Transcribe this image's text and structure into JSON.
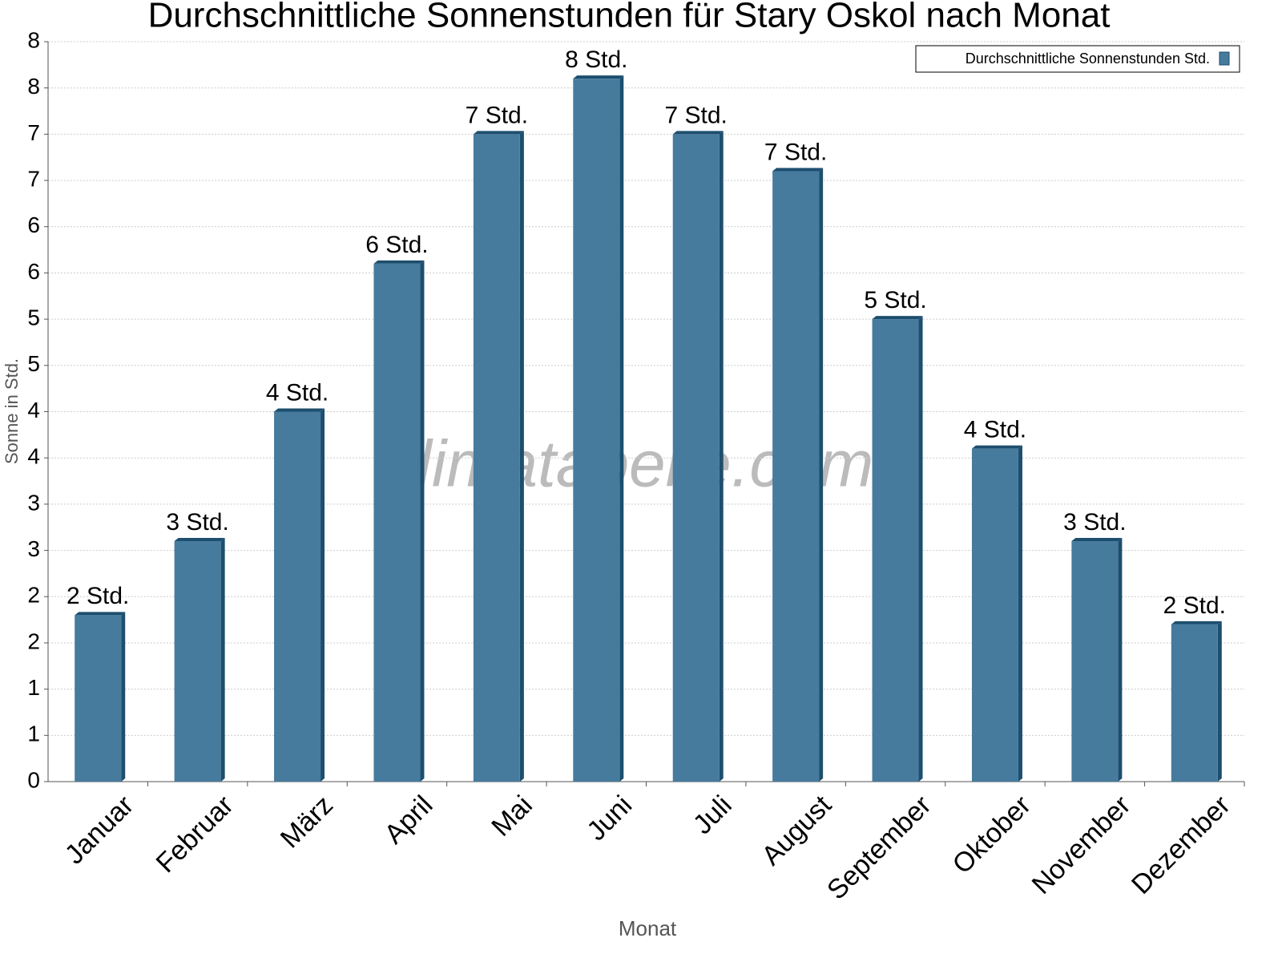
{
  "chart_data": {
    "type": "bar",
    "title": "Durchschnittliche Sonnenstunden für Stary Oskol nach Monat",
    "x_label": "Monat",
    "y_label": "Sonne in Std.",
    "watermark": "klimatabelle.com",
    "categories": [
      "Januar",
      "Februar",
      "März",
      "April",
      "Mai",
      "Juni",
      "Juli",
      "August",
      "September",
      "Oktober",
      "November",
      "Dezember"
    ],
    "series": [
      {
        "name": "Durchschnittliche Sonnenstunden Std.",
        "color": "#467b9e",
        "values": [
          1.8,
          2.6,
          4.0,
          5.6,
          7.0,
          7.6,
          7.0,
          6.6,
          5.0,
          3.6,
          2.6,
          1.7
        ],
        "value_labels": [
          "2 Std.",
          "3 Std.",
          "4 Std.",
          "6 Std.",
          "7 Std.",
          "8 Std.",
          "7 Std.",
          "7 Std.",
          "5 Std.",
          "4 Std.",
          "3 Std.",
          "2 Std."
        ]
      }
    ],
    "ylim": [
      0,
      8
    ],
    "yticks": [
      0,
      {
        "value": 0.5,
        "label": "1"
      },
      1,
      {
        "value": 1.5,
        "label": "2"
      },
      2,
      {
        "value": 2.5,
        "label": "3"
      },
      3,
      {
        "value": 3.5,
        "label": "4"
      },
      4,
      {
        "value": 4.5,
        "label": "5"
      },
      5,
      {
        "value": 5.5,
        "label": "6"
      },
      6,
      {
        "value": 6.5,
        "label": "7"
      },
      7,
      {
        "value": 7.5,
        "label": "8"
      },
      8
    ],
    "grid": true,
    "legend": "top-right"
  }
}
